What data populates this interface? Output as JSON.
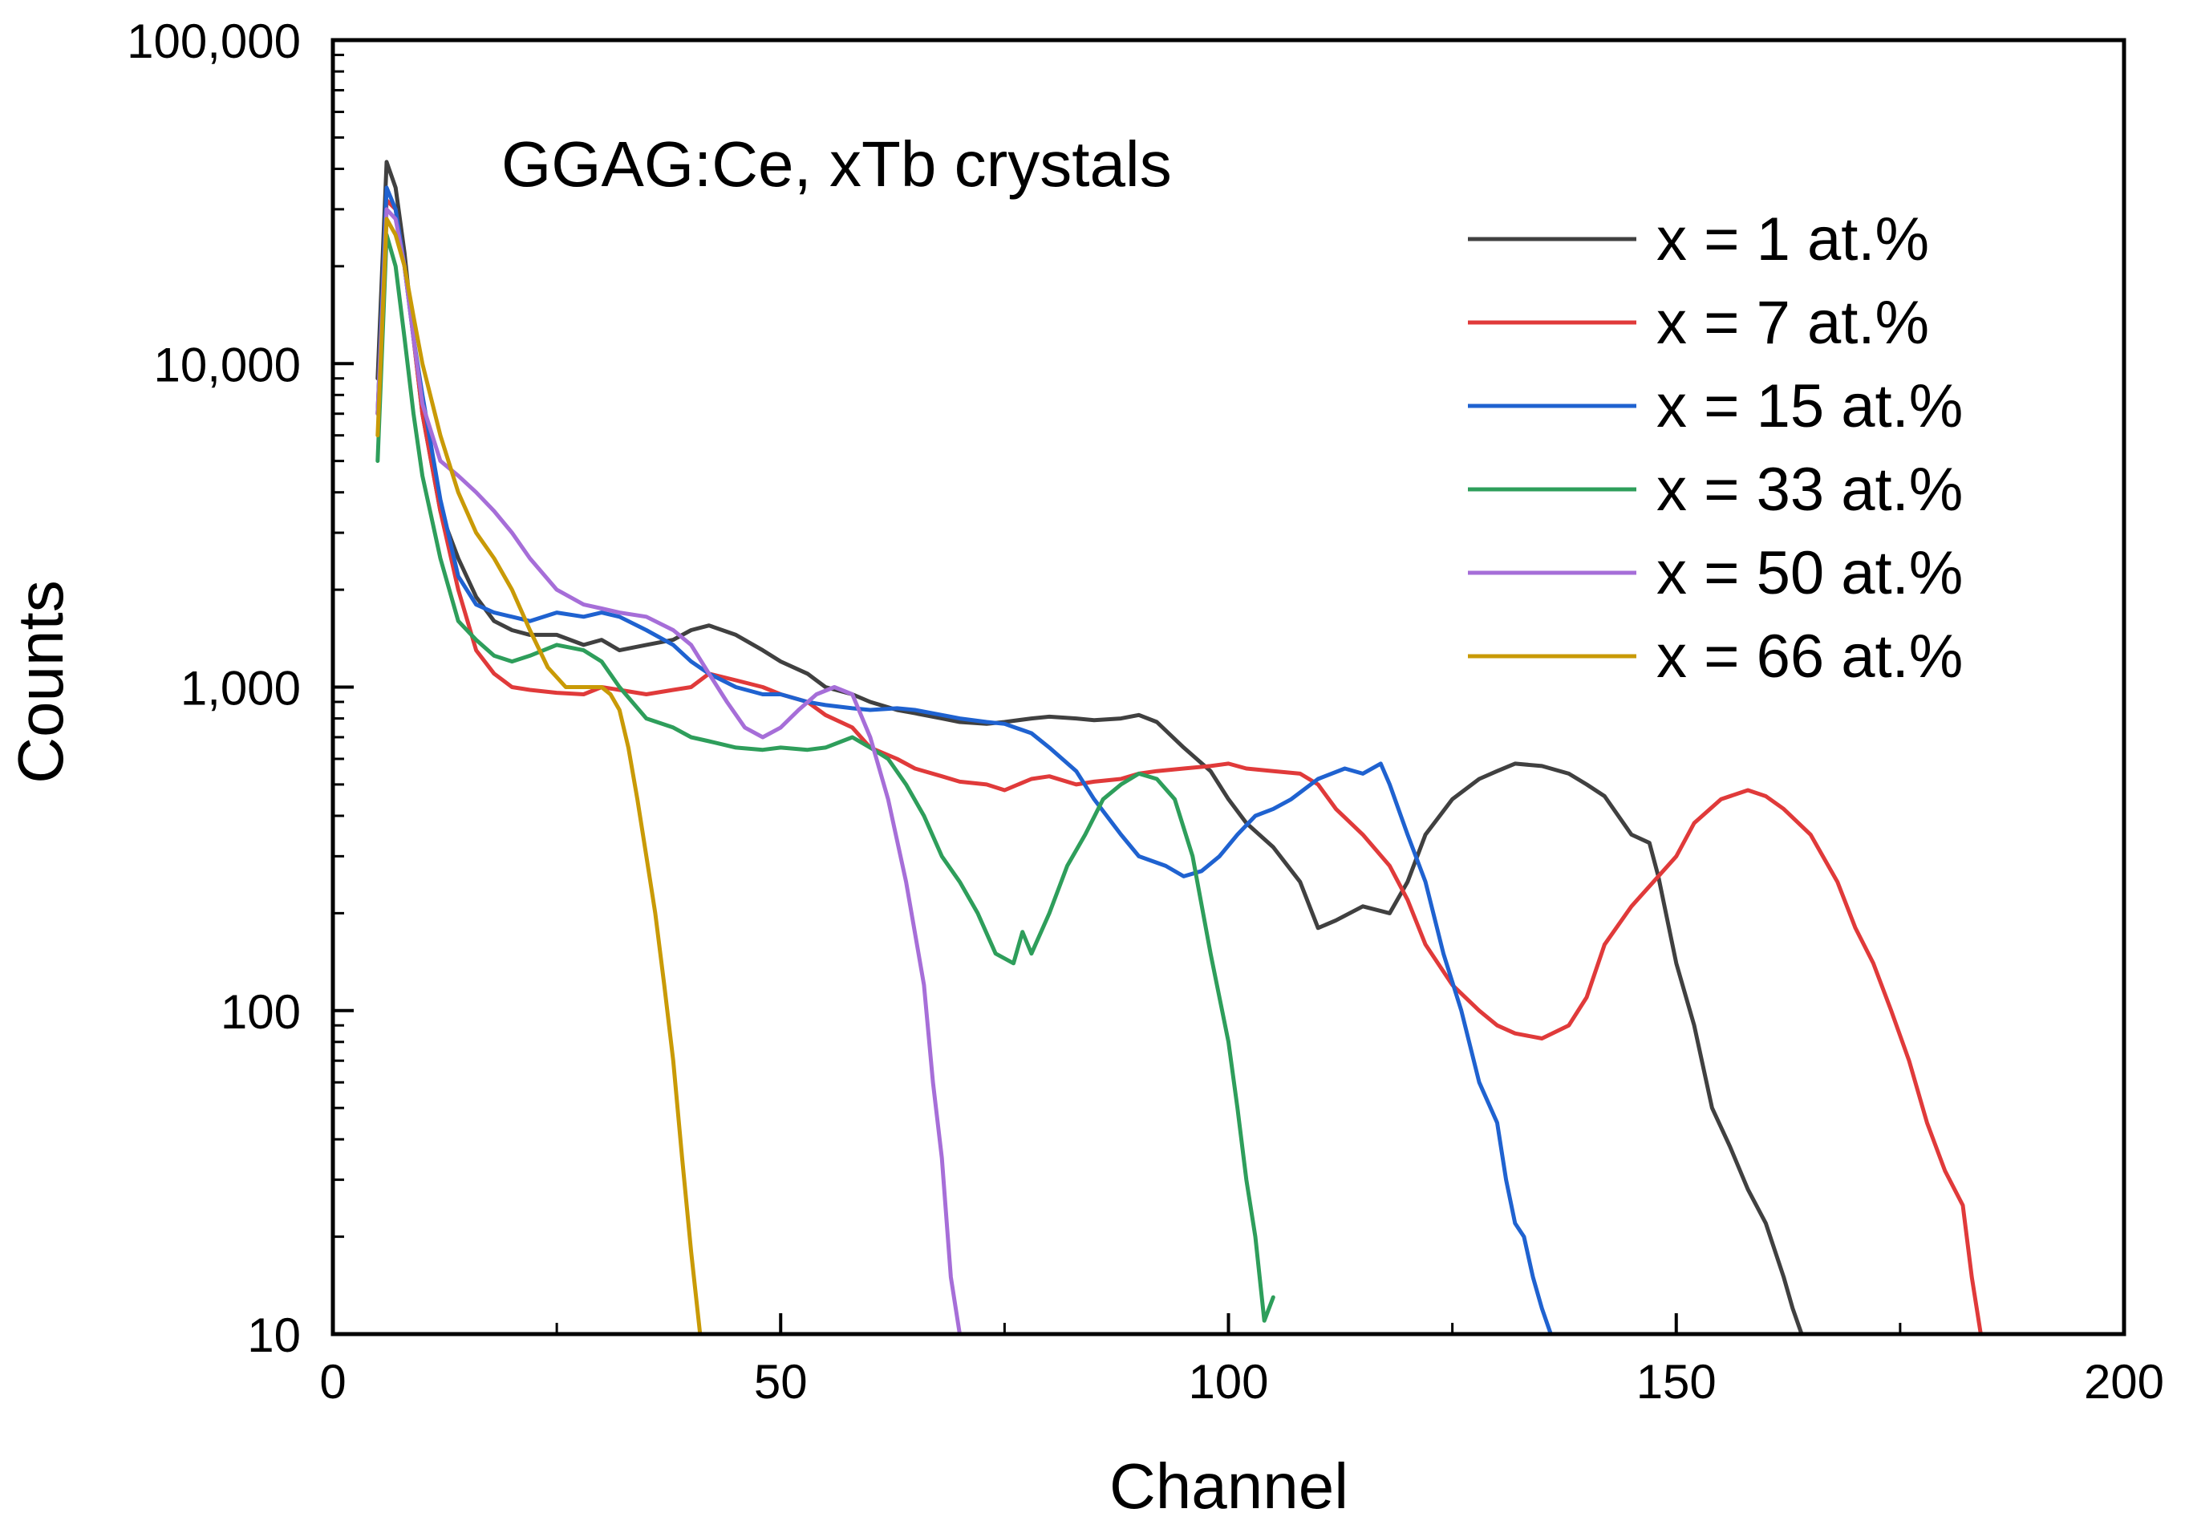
{
  "chart_data": {
    "type": "line",
    "title": "",
    "annotation": "GGAG:Ce, xTb crystals",
    "xlabel": "Channel",
    "ylabel": "Counts",
    "xlim": [
      0,
      200
    ],
    "ylim": [
      10,
      100000
    ],
    "yscale": "log",
    "xticks": [
      0,
      50,
      100,
      150,
      200
    ],
    "xtick_labels": [
      "0",
      "50",
      "100",
      "150",
      "200"
    ],
    "yticks": [
      10,
      100,
      1000,
      10000,
      100000
    ],
    "ytick_labels": [
      "10",
      "100",
      "1,000",
      "10,000",
      "100,000"
    ],
    "grid": false,
    "legend_position": "top-right",
    "series": [
      {
        "name": "x = 1 at.%",
        "color": "#404040",
        "x": [
          5,
          6,
          7,
          8,
          9,
          10,
          12,
          14,
          16,
          18,
          20,
          22,
          25,
          28,
          30,
          32,
          35,
          38,
          40,
          42,
          45,
          48,
          50,
          53,
          55,
          58,
          60,
          63,
          65,
          68,
          70,
          73,
          75,
          78,
          80,
          83,
          85,
          88,
          90,
          92,
          95,
          98,
          100,
          102,
          105,
          108,
          110,
          112,
          115,
          118,
          120,
          122,
          125,
          128,
          130,
          132,
          135,
          138,
          140,
          142,
          145,
          147,
          148,
          150,
          152,
          154,
          156,
          158,
          160,
          162,
          163,
          164
        ],
        "y": [
          9000,
          42000,
          35000,
          22000,
          12000,
          7000,
          3500,
          2500,
          1900,
          1600,
          1500,
          1450,
          1450,
          1350,
          1400,
          1300,
          1350,
          1400,
          1500,
          1550,
          1450,
          1300,
          1200,
          1100,
          1000,
          950,
          900,
          850,
          830,
          800,
          780,
          770,
          780,
          800,
          810,
          800,
          790,
          800,
          820,
          780,
          650,
          550,
          450,
          380,
          320,
          250,
          180,
          190,
          210,
          200,
          250,
          350,
          450,
          520,
          550,
          580,
          570,
          540,
          500,
          460,
          350,
          330,
          260,
          140,
          90,
          50,
          38,
          28,
          22,
          15,
          12,
          10
        ]
      },
      {
        "name": "x = 7 at.%",
        "color": "#e03a3a",
        "x": [
          5,
          6,
          7,
          8,
          9,
          10,
          12,
          14,
          16,
          18,
          20,
          22,
          25,
          28,
          30,
          32,
          35,
          38,
          40,
          42,
          45,
          48,
          50,
          53,
          55,
          58,
          60,
          63,
          65,
          68,
          70,
          73,
          75,
          78,
          80,
          83,
          85,
          88,
          90,
          92,
          95,
          98,
          100,
          102,
          105,
          108,
          110,
          112,
          115,
          118,
          120,
          122,
          125,
          128,
          130,
          132,
          135,
          138,
          140,
          142,
          145,
          148,
          150,
          152,
          155,
          158,
          160,
          162,
          165,
          168,
          170,
          172,
          174,
          176,
          178,
          180,
          182,
          183,
          184
        ],
        "y": [
          7000,
          32000,
          30000,
          20000,
          12000,
          7000,
          3500,
          2000,
          1300,
          1100,
          1000,
          980,
          960,
          950,
          1000,
          980,
          950,
          980,
          1000,
          1100,
          1050,
          1000,
          950,
          900,
          820,
          750,
          650,
          600,
          560,
          530,
          510,
          500,
          480,
          520,
          530,
          500,
          510,
          520,
          540,
          550,
          560,
          570,
          580,
          560,
          550,
          540,
          500,
          420,
          350,
          280,
          220,
          160,
          120,
          100,
          90,
          85,
          82,
          90,
          110,
          160,
          210,
          260,
          300,
          380,
          450,
          480,
          460,
          420,
          350,
          250,
          180,
          140,
          100,
          70,
          45,
          32,
          25,
          15,
          10
        ]
      },
      {
        "name": "x = 15 at.%",
        "color": "#1f62d0",
        "x": [
          5,
          6,
          7,
          8,
          9,
          10,
          12,
          14,
          16,
          18,
          20,
          22,
          25,
          28,
          30,
          32,
          35,
          38,
          40,
          42,
          45,
          48,
          50,
          53,
          55,
          58,
          60,
          63,
          65,
          68,
          70,
          73,
          75,
          78,
          80,
          83,
          85,
          88,
          90,
          93,
          95,
          97,
          99,
          101,
          103,
          105,
          107,
          110,
          113,
          115,
          117,
          118,
          120,
          122,
          124,
          126,
          128,
          130,
          131,
          132,
          133,
          134,
          135,
          136
        ],
        "y": [
          7000,
          35000,
          30000,
          20000,
          12000,
          8000,
          3800,
          2200,
          1800,
          1700,
          1650,
          1600,
          1700,
          1650,
          1700,
          1650,
          1500,
          1350,
          1200,
          1100,
          1000,
          950,
          950,
          900,
          880,
          860,
          850,
          860,
          850,
          820,
          800,
          780,
          770,
          720,
          650,
          550,
          450,
          350,
          300,
          280,
          260,
          270,
          300,
          350,
          400,
          420,
          450,
          520,
          560,
          540,
          580,
          500,
          350,
          250,
          150,
          100,
          60,
          45,
          30,
          22,
          20,
          15,
          12,
          10
        ]
      },
      {
        "name": "x = 33 at.%",
        "color": "#2e9e5b",
        "x": [
          5,
          6,
          7,
          8,
          9,
          10,
          12,
          14,
          16,
          18,
          20,
          22,
          25,
          28,
          30,
          32,
          35,
          38,
          40,
          42,
          45,
          48,
          50,
          53,
          55,
          58,
          60,
          62,
          64,
          66,
          68,
          70,
          72,
          74,
          76,
          77,
          78,
          80,
          82,
          84,
          86,
          88,
          90,
          92,
          94,
          96,
          98,
          100,
          101,
          102,
          103,
          104,
          105
        ],
        "y": [
          5000,
          25000,
          20000,
          12000,
          7000,
          4500,
          2500,
          1600,
          1400,
          1250,
          1200,
          1250,
          1350,
          1300,
          1200,
          1000,
          800,
          750,
          700,
          680,
          650,
          640,
          650,
          640,
          650,
          700,
          650,
          600,
          500,
          400,
          300,
          250,
          200,
          150,
          140,
          175,
          150,
          200,
          280,
          350,
          450,
          500,
          540,
          520,
          450,
          300,
          150,
          80,
          50,
          30,
          20,
          11,
          13
        ]
      },
      {
        "name": "x = 50 at.%",
        "color": "#a66ed8",
        "x": [
          5,
          6,
          7,
          8,
          9,
          10,
          12,
          14,
          16,
          18,
          20,
          22,
          25,
          28,
          30,
          32,
          35,
          38,
          40,
          42,
          44,
          46,
          48,
          50,
          52,
          54,
          56,
          58,
          60,
          62,
          64,
          66,
          67,
          68,
          69,
          70
        ],
        "y": [
          7000,
          30000,
          28000,
          20000,
          12000,
          7500,
          5000,
          4500,
          4000,
          3500,
          3000,
          2500,
          2000,
          1800,
          1750,
          1700,
          1650,
          1500,
          1350,
          1100,
          900,
          750,
          700,
          750,
          850,
          950,
          1000,
          950,
          700,
          450,
          250,
          120,
          60,
          35,
          15,
          10
        ]
      },
      {
        "name": "x = 66 at.%",
        "color": "#c99a06",
        "x": [
          5,
          6,
          7,
          8,
          9,
          10,
          12,
          14,
          16,
          18,
          20,
          22,
          24,
          26,
          28,
          30,
          31,
          32,
          33,
          34,
          35,
          36,
          37,
          38,
          39,
          40,
          41
        ],
        "y": [
          6000,
          28000,
          25000,
          20000,
          14000,
          10000,
          6000,
          4000,
          3000,
          2500,
          2000,
          1500,
          1150,
          1000,
          1000,
          1000,
          950,
          850,
          650,
          450,
          300,
          200,
          120,
          70,
          35,
          18,
          10
        ]
      }
    ]
  }
}
